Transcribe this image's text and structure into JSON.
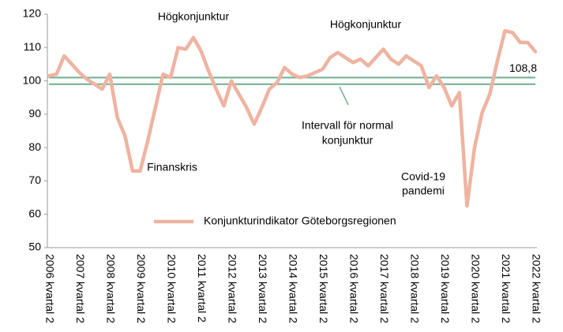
{
  "chart_data": {
    "type": "line",
    "categories": [
      "2006 kvartal 2",
      null,
      null,
      null,
      "2007 kvartal 2",
      null,
      null,
      null,
      "2008 kvartal 2",
      null,
      null,
      null,
      "2009 kvartal 2",
      null,
      null,
      null,
      "2010 kvartal 2",
      null,
      null,
      null,
      "2011 kvartal 2",
      null,
      null,
      null,
      "2012 kvartal 2",
      null,
      null,
      null,
      "2013 kvartal 2",
      null,
      null,
      null,
      "2014 kvartal 2",
      null,
      null,
      null,
      "2015 kvartal 2",
      null,
      null,
      null,
      "2016 kvartal 2",
      null,
      null,
      null,
      "2017 kvartal 2",
      null,
      null,
      null,
      "2018 kvartal 2",
      null,
      null,
      null,
      "2019 kvartal 2",
      null,
      null,
      null,
      "2020 kvartal 2",
      null,
      null,
      null,
      "2021 kvartal 2",
      null,
      null,
      null,
      "2022 kvartal 2"
    ],
    "series": [
      {
        "name": "Konjunkturindikator Göteborgsregionen",
        "color": "#efb3a1",
        "values": [
          101.5,
          102,
          107.5,
          105,
          102.5,
          100.5,
          99,
          97.5,
          102,
          89,
          83.5,
          73,
          73,
          82,
          92,
          102,
          101,
          110,
          109.5,
          113,
          109,
          103,
          97.5,
          92.5,
          100,
          96,
          92,
          87,
          92,
          97.5,
          99.5,
          104,
          102,
          101,
          101.5,
          102.5,
          103.5,
          107,
          108.5,
          107,
          105.5,
          106.5,
          104.5,
          107,
          109.5,
          106.5,
          105,
          107.5,
          106,
          104.5,
          98,
          101.5,
          98,
          92.5,
          96.5,
          62.5,
          80,
          90.5,
          96,
          106,
          115,
          114.5,
          111.5,
          111.5,
          108.8
        ],
        "value_labels": [
          null,
          null,
          null,
          null,
          null,
          null,
          null,
          null,
          null,
          null,
          null,
          null,
          null,
          null,
          null,
          null,
          null,
          null,
          null,
          null,
          null,
          null,
          null,
          null,
          null,
          null,
          null,
          null,
          null,
          null,
          null,
          null,
          null,
          null,
          null,
          null,
          null,
          null,
          null,
          null,
          null,
          null,
          null,
          null,
          null,
          null,
          null,
          null,
          null,
          null,
          null,
          null,
          null,
          null,
          null,
          null,
          null,
          null,
          null,
          null,
          null,
          null,
          null,
          null,
          "108,8"
        ]
      }
    ],
    "reference_lines": {
      "values": [
        101,
        99
      ],
      "color": "#6fae8e"
    },
    "annotations": [
      "Högkonjunktur",
      "Högkonjunktur",
      "Finanskris",
      "Intervall för normal",
      "konjunktur",
      "Covid-19",
      "pandemi"
    ],
    "ylim": [
      50,
      120
    ],
    "yticks": [
      50,
      60,
      70,
      80,
      90,
      100,
      110,
      120
    ],
    "legend": "bottom"
  }
}
